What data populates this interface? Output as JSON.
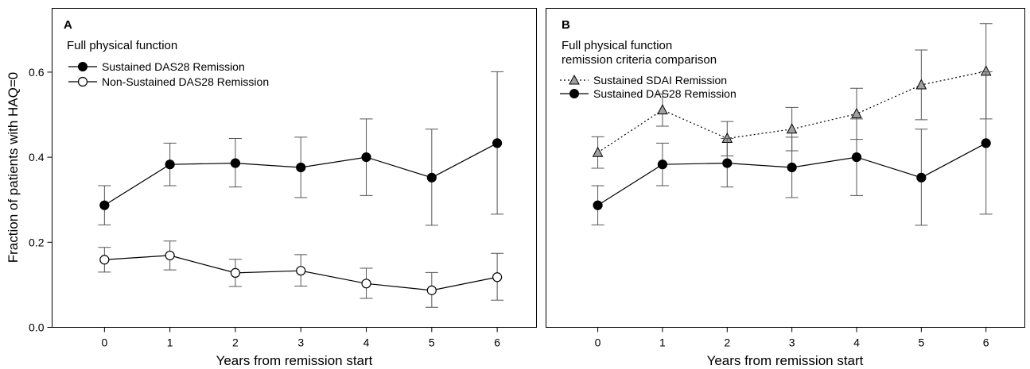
{
  "chart_data": [
    {
      "panel": "A",
      "type": "line",
      "subtitle": [
        "Full physical function"
      ],
      "xlabel": "Years from remission start",
      "ylabel": "Fraction of patients with HAQ=0",
      "x": [
        0,
        1,
        2,
        3,
        4,
        5,
        6
      ],
      "xlim": [
        -0.8,
        6.6
      ],
      "ylim": [
        0,
        0.75
      ],
      "yticks": [
        "0.0",
        "0.2",
        "0.4",
        "0.6"
      ],
      "grid": false,
      "legend_position": "top-left",
      "series": [
        {
          "name": "Sustained DAS28 Remission",
          "marker": "circle-filled",
          "line": "solid",
          "color": "#000000",
          "values": [
            0.287,
            0.383,
            0.386,
            0.376,
            0.4,
            0.352,
            0.433
          ],
          "err_low": [
            0.241,
            0.333,
            0.33,
            0.305,
            0.31,
            0.24,
            0.266
          ],
          "err_high": [
            0.333,
            0.433,
            0.444,
            0.447,
            0.49,
            0.466,
            0.601
          ]
        },
        {
          "name": "Non-Sustained DAS28 Remission",
          "marker": "circle-open",
          "line": "solid",
          "color": "#000000",
          "values": [
            0.159,
            0.169,
            0.128,
            0.133,
            0.103,
            0.087,
            0.118
          ],
          "err_low": [
            0.13,
            0.135,
            0.096,
            0.097,
            0.068,
            0.047,
            0.064
          ],
          "err_high": [
            0.188,
            0.203,
            0.16,
            0.171,
            0.139,
            0.129,
            0.174
          ]
        }
      ]
    },
    {
      "panel": "B",
      "type": "line",
      "subtitle": [
        "Full physical function",
        "remission criteria comparison"
      ],
      "xlabel": "Years from remission start",
      "ylabel": "",
      "x": [
        0,
        1,
        2,
        3,
        4,
        5,
        6
      ],
      "xlim": [
        -0.8,
        6.6
      ],
      "ylim": [
        0,
        0.75
      ],
      "yticks": [],
      "grid": false,
      "legend_position": "top-left",
      "series": [
        {
          "name": "Sustained SDAI Remission",
          "marker": "triangle-gray",
          "line": "dotted",
          "color": "#000000",
          "fill": "#a0a0a0",
          "values": [
            0.411,
            0.511,
            0.444,
            0.466,
            0.502,
            0.57,
            0.602
          ],
          "err_low": [
            0.374,
            0.473,
            0.403,
            0.415,
            0.442,
            0.488,
            0.49
          ],
          "err_high": [
            0.448,
            0.549,
            0.484,
            0.517,
            0.562,
            0.652,
            0.714
          ]
        },
        {
          "name": "Sustained DAS28 Remission",
          "marker": "circle-filled",
          "line": "solid",
          "color": "#000000",
          "values": [
            0.287,
            0.383,
            0.386,
            0.376,
            0.4,
            0.352,
            0.433
          ],
          "err_low": [
            0.241,
            0.333,
            0.33,
            0.305,
            0.31,
            0.24,
            0.266
          ],
          "err_high": [
            0.333,
            0.433,
            0.444,
            0.447,
            0.49,
            0.466,
            0.601
          ]
        }
      ]
    }
  ]
}
